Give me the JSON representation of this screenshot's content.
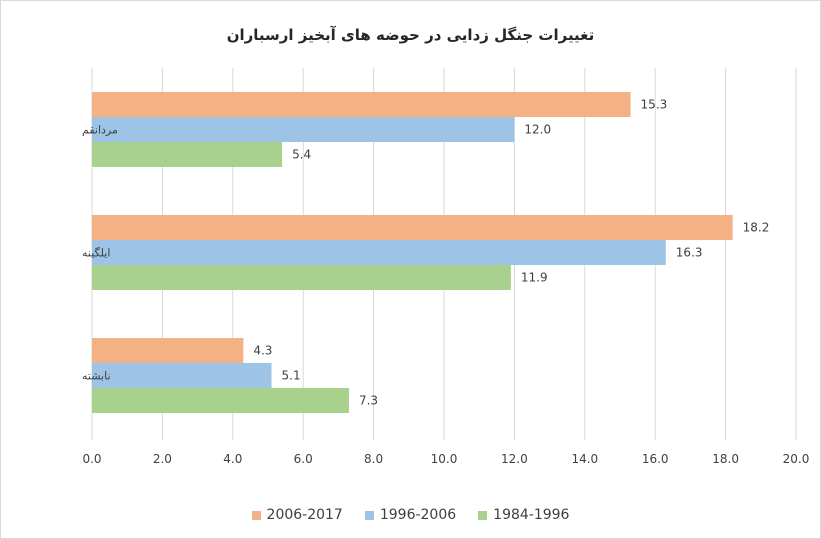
{
  "chart_data": {
    "type": "bar",
    "orientation": "horizontal",
    "title": "تغییرات جنگل زدایی در حوضه های آبخیز ارسباران",
    "categories": [
      "مردانقم",
      "ایلگینه",
      "نابشته"
    ],
    "series": [
      {
        "name": "2006-2017",
        "color": "#F4B183",
        "values": [
          15.3,
          18.2,
          4.3
        ]
      },
      {
        "name": "1996-2006",
        "color": "#9DC3E6",
        "values": [
          12.0,
          16.3,
          5.1
        ]
      },
      {
        "name": "1984-1996",
        "color": "#A9D18E",
        "values": [
          5.4,
          11.9,
          7.3
        ]
      }
    ],
    "xlim": [
      0,
      20
    ],
    "xticks": [
      "0.0",
      "2.0",
      "4.0",
      "6.0",
      "8.0",
      "10.0",
      "12.0",
      "14.0",
      "16.0",
      "18.0",
      "20.0"
    ],
    "data_labels": [
      [
        "15.3",
        "18.2",
        "4.3"
      ],
      [
        "12.0",
        "16.3",
        "5.1"
      ],
      [
        "5.4",
        "11.9",
        "7.3"
      ]
    ],
    "grid": true,
    "legend_position": "bottom"
  }
}
